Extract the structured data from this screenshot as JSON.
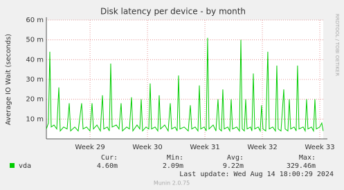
{
  "chart_data": {
    "type": "line",
    "title": "Disk latency per device - by month",
    "ylabel": "Average IO Wait (seconds)",
    "watermark": "RRDTOOL / TOBI OETIKER",
    "x": [
      28.24,
      28.276,
      28.3,
      28.324,
      28.373,
      28.421,
      28.457,
      28.481,
      28.541,
      28.601,
      28.638,
      28.662,
      28.734,
      28.794,
      28.854,
      28.879,
      28.939,
      28.999,
      29.035,
      29.059,
      29.12,
      29.18,
      29.216,
      29.24,
      29.3,
      29.336,
      29.36,
      29.385,
      29.457,
      29.505,
      29.541,
      29.565,
      29.638,
      29.686,
      29.722,
      29.746,
      29.818,
      29.866,
      29.891,
      29.915,
      29.975,
      30.023,
      30.047,
      30.071,
      30.132,
      30.18,
      30.204,
      30.228,
      30.3,
      30.36,
      30.397,
      30.421,
      30.481,
      30.517,
      30.541,
      30.565,
      30.638,
      30.71,
      30.746,
      30.771,
      30.83,
      30.879,
      30.903,
      30.927,
      30.987,
      31.023,
      31.047,
      31.071,
      31.144,
      31.192,
      31.228,
      31.252,
      31.288,
      31.312,
      31.336,
      31.397,
      31.433,
      31.457,
      31.481,
      31.553,
      31.601,
      31.626,
      31.65,
      31.686,
      31.71,
      31.734,
      31.794,
      31.818,
      31.843,
      31.867,
      31.927,
      31.963,
      31.987,
      32.011,
      32.059,
      32.095,
      32.12,
      32.18,
      32.228,
      32.252,
      32.276,
      32.325,
      32.373,
      32.397,
      32.445,
      32.469,
      32.493,
      32.553,
      32.589,
      32.613,
      32.638,
      32.71,
      32.746,
      32.77,
      32.794,
      32.854,
      32.891,
      32.915,
      32.939,
      32.999,
      33.035,
      33.059
    ],
    "series": [
      {
        "name": "vda",
        "color": "#00cc00",
        "values": [
          5,
          8,
          44,
          6,
          7,
          5,
          26,
          4,
          6,
          5,
          18,
          4,
          6,
          4,
          18,
          5,
          6,
          4,
          18,
          5,
          7,
          4,
          22,
          5,
          6,
          4,
          38,
          6,
          7,
          5,
          18,
          4,
          6,
          5,
          21,
          4,
          7,
          5,
          20,
          4,
          6,
          5,
          28,
          5,
          6,
          4,
          22,
          5,
          7,
          4,
          18,
          5,
          6,
          4,
          32,
          5,
          6,
          4,
          17,
          5,
          6,
          4,
          27,
          5,
          6,
          4,
          51,
          5,
          7,
          4,
          20,
          5,
          4,
          25,
          5,
          6,
          4,
          20,
          5,
          6,
          4,
          50,
          5,
          4,
          20,
          5,
          6,
          4,
          33,
          5,
          6,
          4,
          17,
          5,
          4,
          44,
          5,
          6,
          4,
          37,
          5,
          4,
          25,
          5,
          4,
          20,
          5,
          6,
          4,
          37,
          5,
          6,
          4,
          20,
          5,
          6,
          4,
          20,
          5,
          6,
          8,
          4
        ]
      }
    ],
    "xlim": [
      28.24,
      33.06
    ],
    "xticks": [
      {
        "value": 29,
        "label": "Week 29"
      },
      {
        "value": 30,
        "label": "Week 30"
      },
      {
        "value": 31,
        "label": "Week 31"
      },
      {
        "value": 32,
        "label": "Week 32"
      },
      {
        "value": 33,
        "label": "Week 33"
      }
    ],
    "ylim": [
      0,
      60
    ],
    "yticks": [
      {
        "value": 10,
        "label": "10 m"
      },
      {
        "value": 20,
        "label": "20 m"
      },
      {
        "value": 30,
        "label": "30 m"
      },
      {
        "value": 40,
        "label": "40 m"
      },
      {
        "value": 50,
        "label": "50 m"
      },
      {
        "value": 60,
        "label": "60 m"
      }
    ],
    "grid": true,
    "legend_table": {
      "headers": [
        "Cur:",
        "Min:",
        "Avg:",
        "Max:"
      ],
      "row": [
        "4.60m",
        "2.09m",
        "9.22m",
        "329.46m"
      ]
    },
    "last_update": "Last update:  Wed Aug 14 18:00:29 2024",
    "footer": "Munin 2.0.75"
  }
}
